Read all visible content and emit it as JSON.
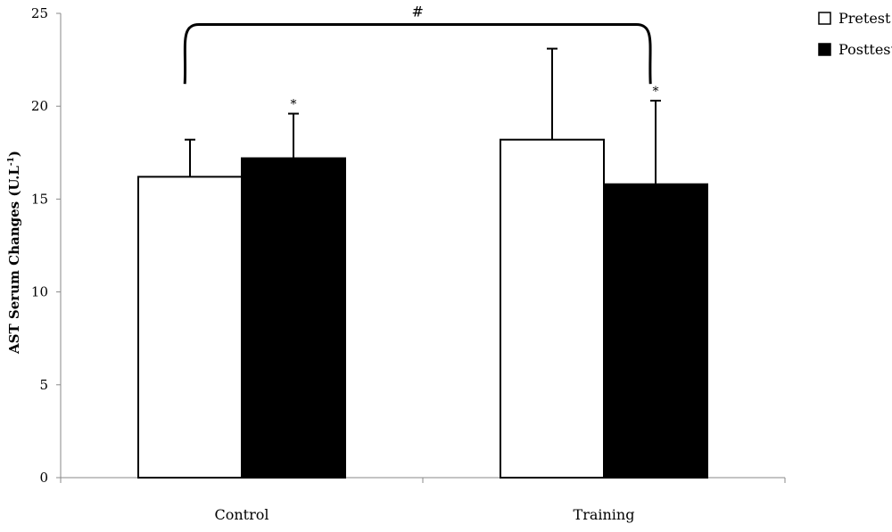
{
  "chart_data": {
    "type": "bar",
    "ylabel_main": "AST Serum Changes (U.L",
    "ylabel_sup": "-1",
    "ylabel_close": ")",
    "ylim": [
      0,
      25
    ],
    "yticks": [
      0,
      5,
      10,
      15,
      20,
      25
    ],
    "grid": false,
    "legend_position": "top-right",
    "categories": [
      "Control",
      "Training"
    ],
    "series": [
      {
        "name": "Pretest",
        "color": "#ffffff",
        "values": [
          16.2,
          18.2
        ],
        "errors": [
          2.0,
          4.9
        ]
      },
      {
        "name": "Posttest",
        "color": "#000000",
        "values": [
          17.2,
          15.8
        ],
        "errors": [
          2.4,
          4.5
        ]
      }
    ],
    "annotations": {
      "posttest_star": "*",
      "bracket_symbol": "#"
    }
  }
}
